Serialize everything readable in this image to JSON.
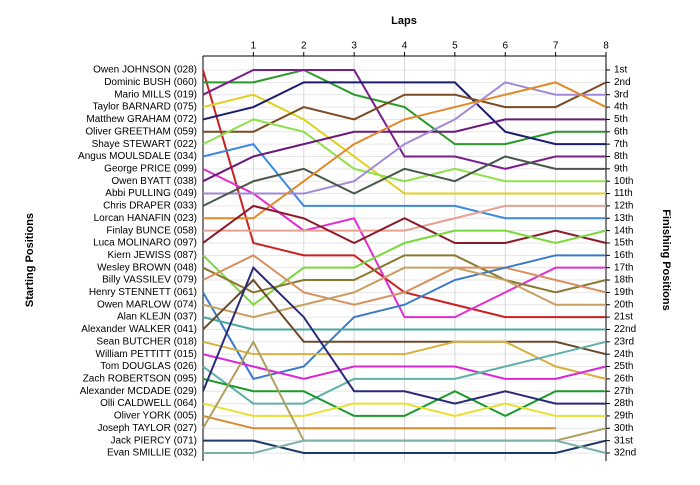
{
  "chart_data": {
    "type": "line",
    "title": "Laps",
    "y_label": "Starting Positions",
    "y2_label": "Finishing Positions",
    "x": [
      0,
      1,
      2,
      3,
      4,
      5,
      6,
      7,
      8
    ],
    "xlim": [
      0,
      8
    ],
    "xticks": [
      1,
      2,
      3,
      4,
      5,
      6,
      7,
      8
    ],
    "ylim": [
      1,
      32
    ],
    "inverted": true,
    "grid": true,
    "yticks": [
      {
        "value": 1,
        "label": "1st"
      },
      {
        "value": 2,
        "label": "2nd"
      },
      {
        "value": 3,
        "label": "3rd"
      },
      {
        "value": 4,
        "label": "4th"
      },
      {
        "value": 5,
        "label": "5th"
      },
      {
        "value": 6,
        "label": "6th"
      },
      {
        "value": 7,
        "label": "7th"
      },
      {
        "value": 8,
        "label": "8th"
      },
      {
        "value": 9,
        "label": "9th"
      },
      {
        "value": 10,
        "label": "10th"
      },
      {
        "value": 11,
        "label": "11th"
      },
      {
        "value": 12,
        "label": "12th"
      },
      {
        "value": 13,
        "label": "13th"
      },
      {
        "value": 14,
        "label": "14th"
      },
      {
        "value": 15,
        "label": "15th"
      },
      {
        "value": 16,
        "label": "16th"
      },
      {
        "value": 17,
        "label": "17th"
      },
      {
        "value": 18,
        "label": "18th"
      },
      {
        "value": 19,
        "label": "19th"
      },
      {
        "value": 20,
        "label": "20th"
      },
      {
        "value": 21,
        "label": "21st"
      },
      {
        "value": 22,
        "label": "22nd"
      },
      {
        "value": 23,
        "label": "23rd"
      },
      {
        "value": 24,
        "label": "24th"
      },
      {
        "value": 25,
        "label": "25th"
      },
      {
        "value": 26,
        "label": "26th"
      },
      {
        "value": 27,
        "label": "27th"
      },
      {
        "value": 28,
        "label": "28th"
      },
      {
        "value": 29,
        "label": "29th"
      },
      {
        "value": 30,
        "label": "30th"
      },
      {
        "value": 31,
        "label": "31st"
      },
      {
        "value": 32,
        "label": "32nd"
      }
    ],
    "series": [
      {
        "name": "Owen JOHNSON (028)",
        "color": "#cc1f1f",
        "values": [
          1,
          15,
          16,
          16,
          19,
          20,
          21,
          21,
          21
        ]
      },
      {
        "name": "Dominic BUSH (060)",
        "color": "#2a9a2a",
        "values": [
          2,
          2,
          1,
          3,
          4,
          7,
          7,
          6,
          6
        ]
      },
      {
        "name": "Mario MILLS (019)",
        "color": "#7a1f8a",
        "values": [
          3,
          1,
          1,
          1,
          8,
          8,
          9,
          8,
          8
        ]
      },
      {
        "name": "Taylor BARNARD (075)",
        "color": "#e0d020",
        "values": [
          4,
          3,
          5,
          8,
          11,
          11,
          11,
          11,
          11
        ]
      },
      {
        "name": "Matthew GRAHAM (072)",
        "color": "#1c1c6e",
        "values": [
          5,
          4,
          2,
          2,
          2,
          2,
          6,
          7,
          7
        ]
      },
      {
        "name": "Oliver GREETHAM (059)",
        "color": "#7a4a22",
        "values": [
          6,
          6,
          4,
          5,
          3,
          3,
          4,
          4,
          2
        ]
      },
      {
        "name": "Shaye STEWART (022)",
        "color": "#8fe04a",
        "values": [
          7,
          5,
          6,
          9,
          10,
          9,
          10,
          10,
          10
        ]
      },
      {
        "name": "Angus MOULSDALE (034)",
        "color": "#3a8ae0",
        "values": [
          8,
          7,
          12,
          12,
          12,
          12,
          13,
          13,
          13
        ]
      },
      {
        "name": "George PRICE (099)",
        "color": "#e030d0",
        "values": [
          9,
          11,
          14,
          13,
          21,
          21,
          19,
          17,
          17
        ]
      },
      {
        "name": "Owen BYATT (038)",
        "color": "#6a1a7a",
        "values": [
          10,
          8,
          7,
          6,
          6,
          6,
          5,
          5,
          5
        ]
      },
      {
        "name": "Abbi PULLING (049)",
        "color": "#a08ad8",
        "values": [
          11,
          11,
          11,
          10,
          7,
          5,
          2,
          3,
          3
        ]
      },
      {
        "name": "Chris DRAPER (033)",
        "color": "#4a5a4a",
        "values": [
          12,
          10,
          9,
          11,
          9,
          10,
          8,
          9,
          9
        ]
      },
      {
        "name": "Lorcan HANAFIN (023)",
        "color": "#e08a2a",
        "values": [
          13,
          13,
          10,
          7,
          5,
          4,
          3,
          2,
          4
        ]
      },
      {
        "name": "Finlay BUNCE (058)",
        "color": "#e8a090",
        "values": [
          14,
          14,
          14,
          14,
          14,
          13,
          12,
          12,
          12
        ]
      },
      {
        "name": "Luca MOLINARO (097)",
        "color": "#8a1a2a",
        "values": [
          15,
          12,
          13,
          15,
          13,
          15,
          15,
          14,
          15
        ]
      },
      {
        "name": "Kiern JEWISS (087)",
        "color": "#7ad83a",
        "values": [
          16,
          20,
          17,
          17,
          15,
          14,
          14,
          15,
          14
        ]
      },
      {
        "name": "Wesley BROWN (048)",
        "color": "#8a7a30",
        "values": [
          17,
          19,
          18,
          18,
          16,
          16,
          18,
          19,
          18
        ]
      },
      {
        "name": "Billy VASSILEV (079)",
        "color": "#d89060",
        "values": [
          18,
          16,
          19,
          20,
          19,
          17,
          17,
          18,
          19
        ]
      },
      {
        "name": "Henry STENNETT (061)",
        "color": "#3a7ac8",
        "values": [
          19,
          26,
          25,
          21,
          20,
          18,
          17,
          16,
          16
        ]
      },
      {
        "name": "Owen MARLOW (074)",
        "color": "#c8a060",
        "values": [
          20,
          21,
          20,
          19,
          17,
          17,
          18,
          20,
          20
        ]
      },
      {
        "name": "Alan KLEJN (037)",
        "color": "#4aa8a0",
        "values": [
          21,
          22,
          22,
          22,
          22,
          22,
          22,
          22,
          22
        ]
      },
      {
        "name": "Alexander WALKER (041)",
        "color": "#6a4a2a",
        "values": [
          22,
          18,
          23,
          23,
          23,
          23,
          23,
          23,
          24
        ]
      },
      {
        "name": "Sean BUTCHER (018)",
        "color": "#d8b040",
        "values": [
          23,
          24,
          24,
          24,
          24,
          23,
          23,
          25,
          26
        ]
      },
      {
        "name": "William PETTITT (015)",
        "color": "#d828d8",
        "values": [
          24,
          25,
          26,
          25,
          25,
          25,
          26,
          26,
          25
        ]
      },
      {
        "name": "Tom DOUGLAS (026)",
        "color": "#60b0a8",
        "values": [
          25,
          28,
          28,
          26,
          26,
          26,
          25,
          24,
          23
        ]
      },
      {
        "name": "Zach ROBERTSON (095)",
        "color": "#1a9a2a",
        "values": [
          26,
          27,
          27,
          29,
          29,
          27,
          29,
          27,
          27
        ]
      },
      {
        "name": "Alexander MCDADE (029)",
        "color": "#2a2a7a",
        "values": [
          27,
          17,
          21,
          27,
          27,
          28,
          27,
          28,
          28
        ]
      },
      {
        "name": "Olli CALDWELL (064)",
        "color": "#e8e030",
        "values": [
          28,
          29,
          29,
          28,
          28,
          29,
          28,
          29,
          29
        ]
      },
      {
        "name": "Oliver YORK (005)",
        "color": "#d88a30",
        "values": [
          29,
          30,
          30,
          30,
          30,
          30,
          30,
          30,
          null
        ]
      },
      {
        "name": "Joseph TAYLOR (027)",
        "color": "#b0a060",
        "values": [
          30,
          23,
          31,
          31,
          31,
          31,
          31,
          31,
          30
        ]
      },
      {
        "name": "Jack PIERCY (071)",
        "color": "#1a3a6a",
        "values": [
          31,
          31,
          32,
          32,
          32,
          32,
          32,
          32,
          31
        ]
      },
      {
        "name": "Evan SMILLIE (032)",
        "color": "#7ab0a8",
        "values": [
          32,
          32,
          31,
          31,
          31,
          31,
          31,
          31,
          32
        ]
      }
    ]
  }
}
